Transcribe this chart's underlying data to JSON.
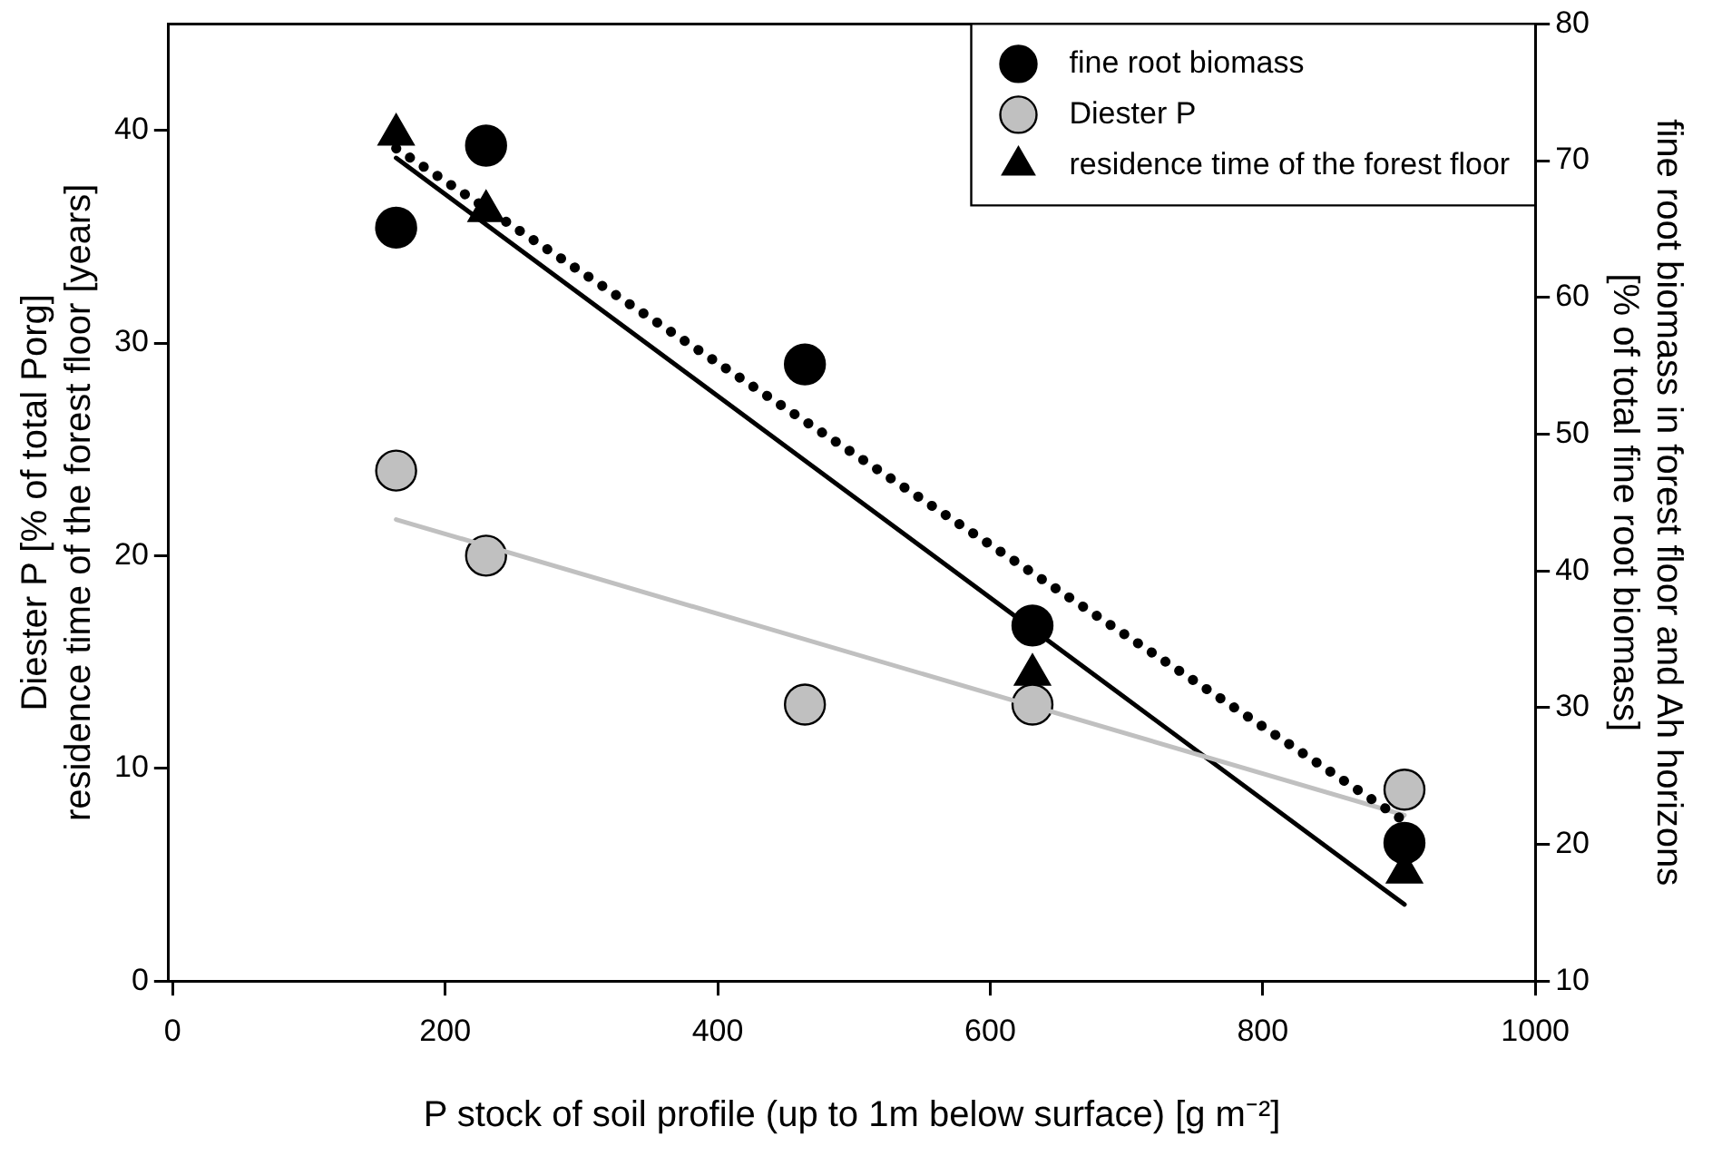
{
  "chart_data": {
    "type": "scatter",
    "xlabel": "P stock of soil profile (up to 1m below surface) [g m⁻²]",
    "ylabel": "Diester P [% of total Porg]\nresidence time of the forest floor [years]",
    "y2label": "fine root biomass in forest floor and Ah horizons\n[% of total fine root biomass]",
    "x": [
      164,
      230,
      464,
      631,
      904
    ],
    "series": [
      {
        "name": "fine root biomass",
        "color": "#000000",
        "axis": "y2",
        "marker": "circle",
        "values": [
          65.1,
          71.1,
          55.1,
          36.0,
          20.1
        ]
      },
      {
        "name": "Diester P",
        "color": "#c0c0c0",
        "marker": "circle",
        "values": [
          24.0,
          20.0,
          13.0,
          13.0,
          9.0
        ]
      },
      {
        "name": "residence time of the forest floor",
        "color": "#000000",
        "marker": "triangle",
        "values": [
          39.8,
          36.2,
          null,
          14.4,
          5.1
        ]
      },
      {
        "type": "line",
        "color": "#000000",
        "axis": "y2",
        "line_style": "dotted",
        "marker": "none",
        "values": [
          70.9,
          null,
          null,
          null,
          21.7
        ]
      },
      {
        "type": "line",
        "color": "#c0c0c0",
        "line_style": "solid",
        "marker": "none",
        "values": [
          21.7,
          null,
          null,
          null,
          7.8
        ]
      },
      {
        "type": "line",
        "color": "#000000",
        "line_style": "solid",
        "marker": "none",
        "values": [
          38.7,
          null,
          null,
          null,
          3.6
        ]
      }
    ],
    "xlim": [
      -3,
      1000
    ],
    "xticks": [
      0,
      200,
      400,
      600,
      800,
      1000
    ],
    "ylim": [
      0,
      45
    ],
    "yticks": [
      0,
      10,
      20,
      30,
      40
    ],
    "y2lim": [
      10,
      80
    ],
    "y2ticks": [
      10,
      20,
      30,
      40,
      50,
      60,
      70,
      80
    ],
    "grid": false,
    "legend": "top right"
  }
}
